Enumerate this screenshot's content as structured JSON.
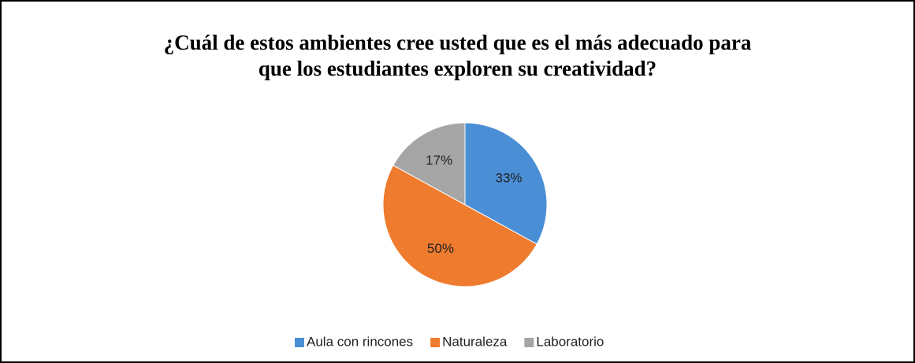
{
  "chart_data": {
    "type": "pie",
    "title": "¿Cuál de estos ambientes cree usted que es el más adecuado para que los estudiantes exploren su creatividad?",
    "categories": [
      "Aula con rincones",
      "Naturaleza",
      "Laboratorio"
    ],
    "values": [
      33,
      50,
      17
    ],
    "value_labels": [
      "33%",
      "50%",
      "17%"
    ],
    "colors": [
      "#4a8fd6",
      "#ee7b2e",
      "#a5a5a5"
    ],
    "legend": "bottom"
  }
}
